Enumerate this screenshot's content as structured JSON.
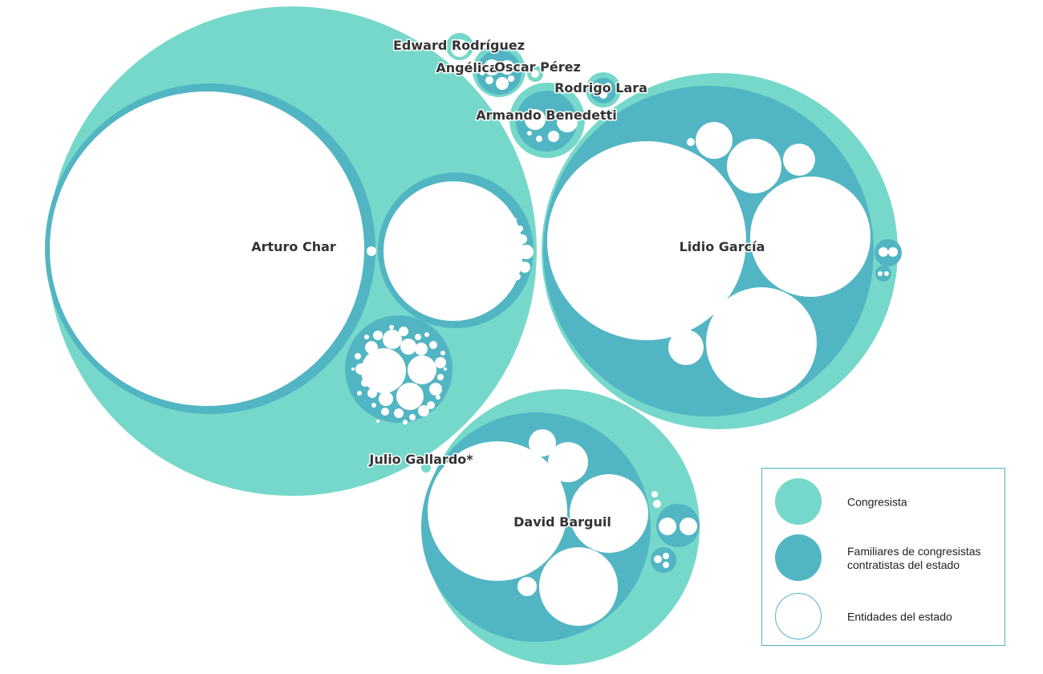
{
  "colors": {
    "congresista": "#76d8ca",
    "familiar": "#52b5c3",
    "entidad": "#ffffff",
    "entidad_stroke": "#52b5c3",
    "label": "#333333"
  },
  "congresistas": [
    {
      "name": "Arturo Char",
      "label": "Arturo Char"
    },
    {
      "name": "Lidio García",
      "label": "Lidio García"
    },
    {
      "name": "David Barguil",
      "label": "David Barguil"
    },
    {
      "name": "Julio Gallardo",
      "label": "Julio Gallardo*"
    },
    {
      "name": "Edward Rodríguez",
      "label": "Edward Rodríguez"
    },
    {
      "name": "Angélica",
      "label": "Angélica"
    },
    {
      "name": "Oscar Pérez",
      "label": "Oscar Pérez"
    },
    {
      "name": "Rodrigo Lara",
      "label": "Rodrigo Lara"
    },
    {
      "name": "Armando Benedetti",
      "label": "Armando Benedetti"
    }
  ],
  "legend": {
    "items": [
      {
        "key": "congresista",
        "label_line1": "Congresista",
        "label_line2": ""
      },
      {
        "key": "familiar",
        "label_line1": "Familiares de congresistas",
        "label_line2": "contratistas del estado"
      },
      {
        "key": "entidad",
        "label_line1": "Entidades del estado",
        "label_line2": ""
      }
    ]
  }
}
